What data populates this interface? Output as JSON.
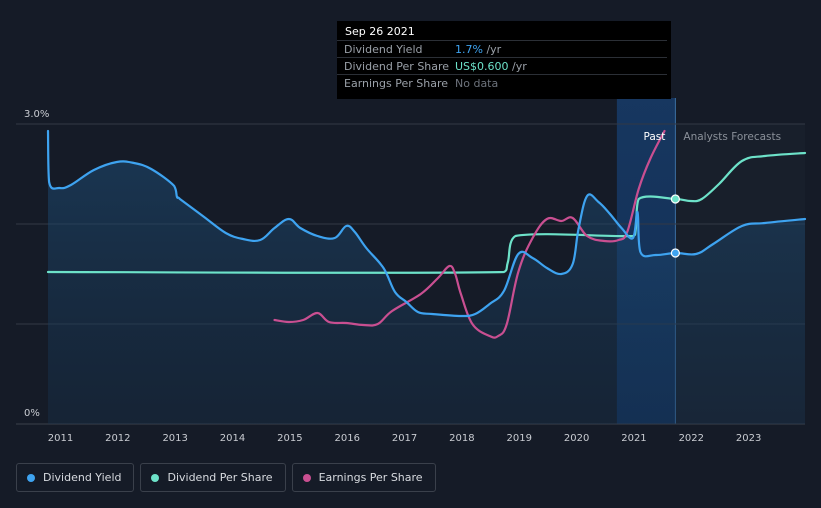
{
  "tooltip": {
    "date": "Sep 26 2021",
    "rows": [
      {
        "label": "Dividend Yield",
        "value": "1.7%",
        "unit": " /yr"
      },
      {
        "label": "Dividend Per Share",
        "value": "US$0.600",
        "unit": " /yr"
      },
      {
        "label": "Earnings Per Share",
        "value": "No data",
        "unit": ""
      }
    ]
  },
  "labels": {
    "past": "Past",
    "forecast": "Analysts Forecasts"
  },
  "legend": [
    {
      "label": "Dividend Yield",
      "color": "#3ea3f0"
    },
    {
      "label": "Dividend Per Share",
      "color": "#6de2c9"
    },
    {
      "label": "Earnings Per Share",
      "color": "#c94f91"
    }
  ],
  "chart_data": {
    "type": "line",
    "xlim": [
      2010.8,
      2024.0
    ],
    "ylim": [
      0,
      3.0
    ],
    "y_ticks": [
      {
        "value": 3.0,
        "label": "3.0%"
      },
      {
        "value": 0,
        "label": "0%"
      }
    ],
    "x_ticks": [
      "2011",
      "2012",
      "2013",
      "2014",
      "2015",
      "2016",
      "2017",
      "2018",
      "2019",
      "2020",
      "2021",
      "2022",
      "2023"
    ],
    "past_end": 2021.74,
    "highlight_start": 2020.72,
    "colors": {
      "yield": "#3ea3f0",
      "dps": "#6de2c9",
      "eps": "#c94f91"
    },
    "series": [
      {
        "name": "Dividend Yield",
        "key": "yield",
        "points": [
          [
            2010.8,
            2.93
          ],
          [
            2010.82,
            2.42
          ],
          [
            2011.0,
            2.36
          ],
          [
            2011.2,
            2.39
          ],
          [
            2011.6,
            2.54
          ],
          [
            2012.0,
            2.62
          ],
          [
            2012.3,
            2.61
          ],
          [
            2012.6,
            2.55
          ],
          [
            2013.0,
            2.38
          ],
          [
            2013.05,
            2.27
          ],
          [
            2013.1,
            2.25
          ],
          [
            2013.5,
            2.08
          ],
          [
            2013.9,
            1.91
          ],
          [
            2014.2,
            1.85
          ],
          [
            2014.5,
            1.84
          ],
          [
            2014.75,
            1.96
          ],
          [
            2015.0,
            2.05
          ],
          [
            2015.2,
            1.96
          ],
          [
            2015.5,
            1.88
          ],
          [
            2015.8,
            1.86
          ],
          [
            2016.0,
            1.98
          ],
          [
            2016.15,
            1.92
          ],
          [
            2016.35,
            1.76
          ],
          [
            2016.65,
            1.56
          ],
          [
            2016.85,
            1.32
          ],
          [
            2017.05,
            1.22
          ],
          [
            2017.25,
            1.12
          ],
          [
            2017.5,
            1.1
          ],
          [
            2018.0,
            1.08
          ],
          [
            2018.25,
            1.1
          ],
          [
            2018.5,
            1.2
          ],
          [
            2018.75,
            1.33
          ],
          [
            2019.0,
            1.7
          ],
          [
            2019.25,
            1.66
          ],
          [
            2019.5,
            1.56
          ],
          [
            2019.75,
            1.5
          ],
          [
            2019.95,
            1.6
          ],
          [
            2020.05,
            1.95
          ],
          [
            2020.2,
            2.28
          ],
          [
            2020.4,
            2.22
          ],
          [
            2020.6,
            2.1
          ],
          [
            2020.8,
            1.96
          ],
          [
            2021.0,
            1.86
          ],
          [
            2021.08,
            2.12
          ],
          [
            2021.13,
            1.72
          ],
          [
            2021.4,
            1.69
          ],
          [
            2021.74,
            1.71
          ],
          [
            2022.1,
            1.7
          ],
          [
            2022.4,
            1.8
          ],
          [
            2022.9,
            1.98
          ],
          [
            2023.3,
            2.01
          ],
          [
            2024.0,
            2.05
          ]
        ]
      },
      {
        "name": "Dividend Per Share",
        "key": "dps",
        "points": [
          [
            2010.8,
            1.52
          ],
          [
            2018.75,
            1.52
          ],
          [
            2018.82,
            1.62
          ],
          [
            2018.95,
            1.88
          ],
          [
            2021.0,
            1.88
          ],
          [
            2021.05,
            1.95
          ],
          [
            2021.1,
            2.25
          ],
          [
            2021.74,
            2.25
          ],
          [
            2022.0,
            2.23
          ],
          [
            2022.2,
            2.25
          ],
          [
            2022.5,
            2.4
          ],
          [
            2022.9,
            2.63
          ],
          [
            2023.3,
            2.68
          ],
          [
            2024.0,
            2.71
          ]
        ]
      },
      {
        "name": "Earnings Per Share",
        "key": "eps",
        "points": [
          [
            2014.75,
            1.04
          ],
          [
            2015.0,
            1.02
          ],
          [
            2015.25,
            1.04
          ],
          [
            2015.5,
            1.11
          ],
          [
            2015.7,
            1.02
          ],
          [
            2016.0,
            1.01
          ],
          [
            2016.3,
            0.99
          ],
          [
            2016.55,
            1.0
          ],
          [
            2016.8,
            1.13
          ],
          [
            2017.3,
            1.3
          ],
          [
            2017.6,
            1.46
          ],
          [
            2017.8,
            1.58
          ],
          [
            2017.9,
            1.5
          ],
          [
            2018.0,
            1.3
          ],
          [
            2018.2,
            1.0
          ],
          [
            2018.5,
            0.88
          ],
          [
            2018.65,
            0.88
          ],
          [
            2018.8,
            1.0
          ],
          [
            2019.0,
            1.52
          ],
          [
            2019.25,
            1.86
          ],
          [
            2019.5,
            2.05
          ],
          [
            2019.75,
            2.03
          ],
          [
            2019.95,
            2.06
          ],
          [
            2020.2,
            1.88
          ],
          [
            2020.5,
            1.83
          ],
          [
            2020.75,
            1.84
          ],
          [
            2020.9,
            1.92
          ],
          [
            2021.1,
            2.35
          ],
          [
            2021.3,
            2.65
          ],
          [
            2021.55,
            2.93
          ]
        ]
      }
    ],
    "markers": [
      {
        "series": "dps",
        "x": 2021.74,
        "y": 2.25
      },
      {
        "series": "yield",
        "x": 2021.74,
        "y": 1.71
      }
    ]
  }
}
